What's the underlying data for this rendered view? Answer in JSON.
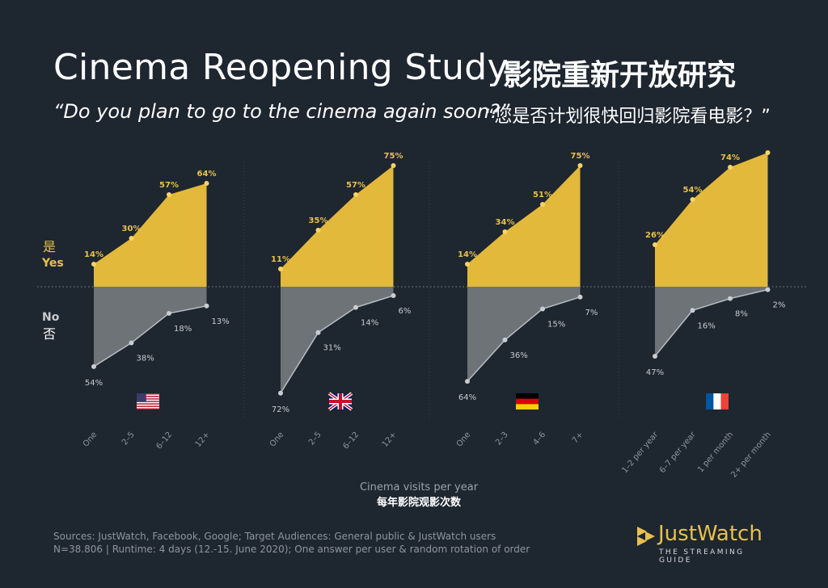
{
  "header": {
    "title_en": "Cinema Reopening Study",
    "title_zh": "影院重新开放研究",
    "question_en": "“Do you plan to go to the cinema again soon?”",
    "question_zh": "“您是否计划很快回归影院看电影？”"
  },
  "chart_data": {
    "type": "area",
    "title": "Cinema Reopening Study",
    "legend": {
      "yes_zh": "是",
      "yes_en": "Yes",
      "no_en": "No",
      "no_zh": "否"
    },
    "xlabel_en": "Cinema visits per year",
    "xlabel_zh": "每年影院观影次数",
    "colors": {
      "yes": "#e2b93b",
      "no": "#6e7378",
      "yes_label": "#e8c14a",
      "no_label": "#c8cbce",
      "background": "#1e2630"
    },
    "panels": [
      {
        "country": "United States",
        "flag": "us-flag",
        "categories": [
          "One",
          "2–5",
          "6–12",
          "12+"
        ],
        "series": [
          {
            "name": "Yes",
            "values": [
              14,
              30,
              57,
              64
            ]
          },
          {
            "name": "No",
            "values": [
              54,
              38,
              18,
              13
            ]
          }
        ]
      },
      {
        "country": "United Kingdom",
        "flag": "uk-flag",
        "categories": [
          "One",
          "2–5",
          "6–12",
          "12+"
        ],
        "series": [
          {
            "name": "Yes",
            "values": [
              11,
              35,
              57,
              75
            ]
          },
          {
            "name": "No",
            "values": [
              72,
              31,
              14,
              6
            ]
          }
        ]
      },
      {
        "country": "Germany",
        "flag": "de-flag",
        "categories": [
          "One",
          "2–3",
          "4–6",
          "7+"
        ],
        "series": [
          {
            "name": "Yes",
            "values": [
              14,
              34,
              51,
              75
            ]
          },
          {
            "name": "No",
            "values": [
              64,
              36,
              15,
              7
            ]
          }
        ]
      },
      {
        "country": "France",
        "flag": "fr-flag",
        "categories": [
          "1–2 per year",
          "6–7 per year",
          "1 per month",
          "2+ per month"
        ],
        "series": [
          {
            "name": "Yes",
            "values": [
              26,
              54,
              74,
              83
            ]
          },
          {
            "name": "No",
            "values": [
              47,
              16,
              8,
              2
            ]
          }
        ],
        "label_mask": [
          true,
          true,
          true,
          false
        ]
      }
    ]
  },
  "footer": {
    "line1": "Sources: JustWatch, Facebook, Google; Target Audiences: General public & JustWatch users",
    "line2": "N=38.806 | Runtime: 4 days (12.-15. June 2020); One answer per user & random rotation of order"
  },
  "brand": {
    "name": "JustWatch",
    "tagline": "THE STREAMING GUIDE",
    "icon": "play-triangles-icon"
  }
}
